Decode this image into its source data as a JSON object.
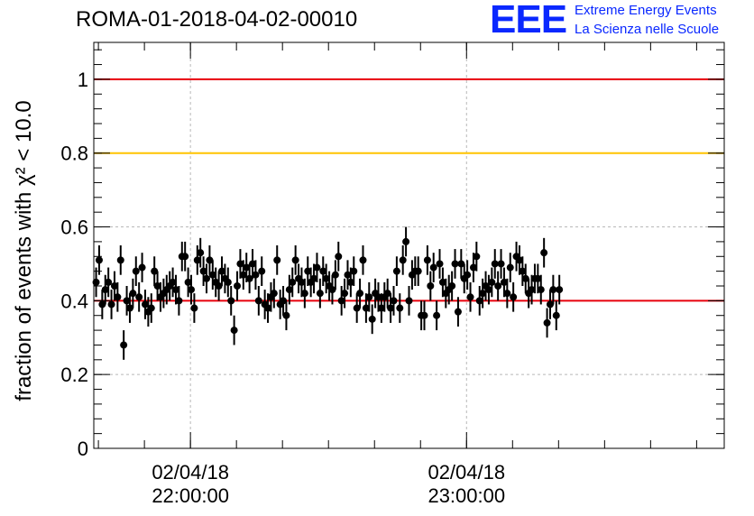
{
  "header": {
    "title": "ROMA-01-2018-04-02-00010",
    "logo_mark": "EEE",
    "logo_line1": "Extreme Energy Events",
    "logo_line2": "La Scienza nelle Scuole"
  },
  "colors": {
    "reference_high": "#e8000b",
    "reference_mid": "#ffc400",
    "reference_low": "#e8000b",
    "points": "#000000",
    "logo": "#0a28ff"
  },
  "chart_data": {
    "type": "scatter",
    "title": "ROMA-01-2018-04-02-00010",
    "ylabel": "fraction of events with χ² < 10.0",
    "xlabel": "",
    "ylim": [
      0,
      1.1
    ],
    "xlim": [
      "2018-04-02 21:39:00",
      "2018-04-02 23:56:00"
    ],
    "yticks": [
      "0",
      "0.2",
      "0.4",
      "0.6",
      "0.8",
      "1"
    ],
    "xticks": [
      {
        "date": "02/04/18",
        "time": "22:00:00",
        "at": "2018-04-02 22:00:00"
      },
      {
        "date": "02/04/18",
        "time": "23:00:00",
        "at": "2018-04-02 23:00:00"
      }
    ],
    "grid": true,
    "reference_lines": [
      1.0,
      0.8,
      0.4
    ],
    "error_bar": 0.04,
    "start": "2018-04-02 21:39:30",
    "step_seconds": 40,
    "values": [
      0.45,
      0.51,
      0.39,
      0.43,
      0.45,
      0.39,
      0.44,
      0.41,
      0.51,
      0.28,
      0.4,
      0.38,
      0.42,
      0.48,
      0.41,
      0.49,
      0.39,
      0.37,
      0.38,
      0.48,
      0.44,
      0.41,
      0.42,
      0.43,
      0.44,
      0.45,
      0.43,
      0.4,
      0.52,
      0.52,
      0.45,
      0.43,
      0.38,
      0.51,
      0.53,
      0.48,
      0.46,
      0.51,
      0.47,
      0.45,
      0.44,
      0.48,
      0.46,
      0.45,
      0.4,
      0.32,
      0.44,
      0.5,
      0.47,
      0.49,
      0.46,
      0.5,
      0.47,
      0.4,
      0.48,
      0.39,
      0.38,
      0.41,
      0.42,
      0.51,
      0.39,
      0.4,
      0.36,
      0.43,
      0.45,
      0.51,
      0.46,
      0.45,
      0.42,
      0.48,
      0.45,
      0.46,
      0.49,
      0.42,
      0.48,
      0.46,
      0.44,
      0.43,
      0.47,
      0.52,
      0.4,
      0.42,
      0.47,
      0.45,
      0.48,
      0.38,
      0.42,
      0.51,
      0.38,
      0.41,
      0.35,
      0.42,
      0.41,
      0.38,
      0.41,
      0.42,
      0.38,
      0.4,
      0.48,
      0.38,
      0.51,
      0.56,
      0.4,
      0.47,
      0.48,
      0.48,
      0.36,
      0.36,
      0.51,
      0.44,
      0.49,
      0.36,
      0.5,
      0.45,
      0.42,
      0.43,
      0.44,
      0.5,
      0.37,
      0.5,
      0.46,
      0.47,
      0.41,
      0.49,
      0.52,
      0.4,
      0.42,
      0.44,
      0.43,
      0.45,
      0.5,
      0.44,
      0.5,
      0.45,
      0.42,
      0.49,
      0.41,
      0.52,
      0.51,
      0.48,
      0.46,
      0.42,
      0.43,
      0.46,
      0.46,
      0.43,
      0.53,
      0.34,
      0.39,
      0.43,
      0.36,
      0.43
    ]
  }
}
